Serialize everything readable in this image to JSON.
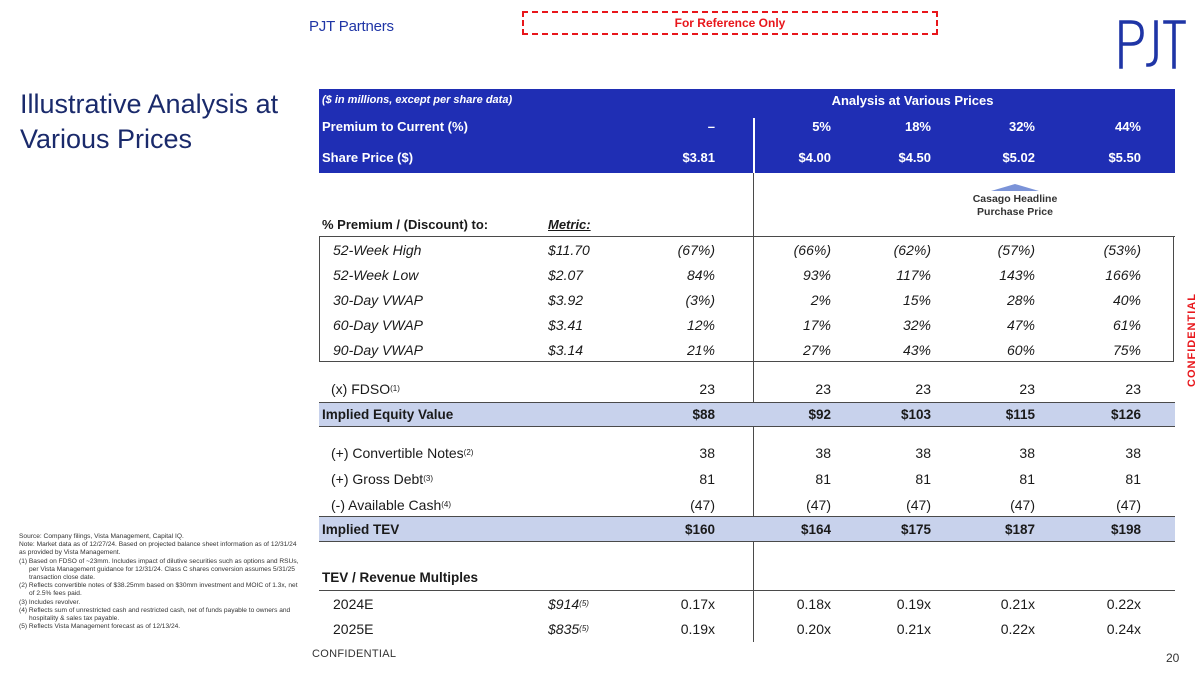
{
  "brand": "PJT Partners",
  "reference_label": "For Reference Only",
  "logo_text": "PJT",
  "title": "Illustrative Analysis at Various Prices",
  "confidential_side": "CONFIDENTIAL",
  "confidential_bottom": "CONFIDENTIAL",
  "page_number": "20",
  "table": {
    "units_note": "($ in millions, except per share data)",
    "section_header": "Analysis at Various Prices",
    "premium_label": "Premium to Current (%)",
    "premiums": [
      "–",
      "5%",
      "18%",
      "32%",
      "44%"
    ],
    "share_price_label": "Share Price ($)",
    "share_prices": [
      "$3.81",
      "$4.00",
      "$4.50",
      "$5.02",
      "$5.50"
    ],
    "casago_label": "Casago Headline Purchase Price",
    "premium_discount_label": "% Premium / (Discount) to:",
    "metric_label": "Metric:",
    "metric_rows": [
      {
        "label": "52-Week High",
        "metric": "$11.70",
        "values": [
          "(67%)",
          "(66%)",
          "(62%)",
          "(57%)",
          "(53%)"
        ]
      },
      {
        "label": "52-Week Low",
        "metric": "$2.07",
        "values": [
          "84%",
          "93%",
          "117%",
          "143%",
          "166%"
        ]
      },
      {
        "label": "30-Day VWAP",
        "metric": "$3.92",
        "values": [
          "(3%)",
          "2%",
          "15%",
          "28%",
          "40%"
        ]
      },
      {
        "label": "60-Day VWAP",
        "metric": "$3.41",
        "values": [
          "12%",
          "17%",
          "32%",
          "47%",
          "61%"
        ]
      },
      {
        "label": "90-Day VWAP",
        "metric": "$3.14",
        "values": [
          "21%",
          "27%",
          "43%",
          "60%",
          "75%"
        ]
      }
    ],
    "fdso": {
      "label": "(x) FDSO",
      "note": "(1)",
      "values": [
        "23",
        "23",
        "23",
        "23",
        "23"
      ]
    },
    "equity_value": {
      "label": "Implied Equity Value",
      "values": [
        "$88",
        "$92",
        "$103",
        "$115",
        "$126"
      ]
    },
    "bridge_rows": [
      {
        "label": "(+) Convertible Notes",
        "note": "(2)",
        "values": [
          "38",
          "38",
          "38",
          "38",
          "38"
        ]
      },
      {
        "label": "(+) Gross Debt",
        "note": "(3)",
        "values": [
          "81",
          "81",
          "81",
          "81",
          "81"
        ]
      },
      {
        "label": "(-) Available Cash",
        "note": "(4)",
        "values": [
          "(47)",
          "(47)",
          "(47)",
          "(47)",
          "(47)"
        ]
      }
    ],
    "tev": {
      "label": "Implied TEV",
      "values": [
        "$160",
        "$164",
        "$175",
        "$187",
        "$198"
      ]
    },
    "multiples_header": "TEV / Revenue Multiples",
    "multiple_rows": [
      {
        "label": "2024E",
        "metric": "$914",
        "note": "(5)",
        "values": [
          "0.17x",
          "0.18x",
          "0.19x",
          "0.21x",
          "0.22x"
        ]
      },
      {
        "label": "2025E",
        "metric": "$835",
        "note": "(5)",
        "values": [
          "0.19x",
          "0.20x",
          "0.21x",
          "0.22x",
          "0.24x"
        ]
      }
    ]
  },
  "footnotes": [
    "Source: Company filings, Vista Management, Capital IQ.",
    "Note: Market data as of 12/27/24. Based on projected balance sheet information as of 12/31/24 as provided by Vista Management.",
    "(1) Based on FDSO of ~23mm. Includes impact of dilutive securities such as options and RSUs, per Vista Management guidance for 12/31/24. Class C shares conversion assumes 5/31/25 transaction close date.",
    "(2) Reflects convertible notes of $38.25mm based on $30mm investment and MOIC of 1.3x, net of 2.5% fees paid.",
    "(3) Includes revolver.",
    "(4) Reflects sum of unrestricted cash and restricted cash, net of funds payable to owners and hospitality & sales tax payable.",
    "(5) Reflects Vista Management forecast as of 12/13/24."
  ]
}
